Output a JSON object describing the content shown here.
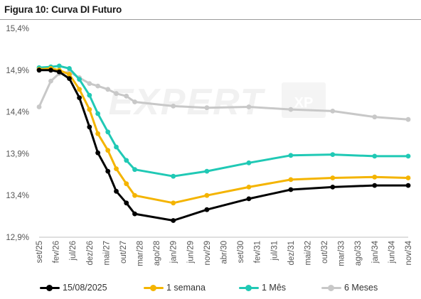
{
  "header": {
    "title": "Figura 10: Curva DI Futuro"
  },
  "watermark": {
    "text": "EXPERT",
    "badge": "XP"
  },
  "chart_data": {
    "type": "line",
    "title": "Figura 10: Curva DI Futuro",
    "xlabel": "",
    "ylabel": "",
    "x": [
      "set/25",
      "fev/26",
      "jul/26",
      "dez/26",
      "mai/27",
      "out/27",
      "mar/28",
      "ago/28",
      "jan/29",
      "jun/29",
      "nov/29",
      "abr/30",
      "set/30",
      "fev/31",
      "jul/31",
      "dez/31",
      "mai/32",
      "out/32",
      "mar/33",
      "ago/33",
      "jan/34",
      "jun/34",
      "nov/34"
    ],
    "yticks": [
      "12,9%",
      "13,4%",
      "13,9%",
      "14,4%",
      "14,9%",
      "15,4%"
    ],
    "ylim": [
      12.9,
      15.4
    ],
    "xlim": [
      0,
      22
    ],
    "grid": false,
    "legend_position": "bottom",
    "series": [
      {
        "name": "15/08/2025",
        "color": "#000000",
        "points": [
          [
            0,
            14.9
          ],
          [
            0.7,
            14.9
          ],
          [
            1.2,
            14.88
          ],
          [
            1.8,
            14.8
          ],
          [
            2.4,
            14.57
          ],
          [
            3.0,
            14.22
          ],
          [
            3.5,
            13.91
          ],
          [
            4.1,
            13.69
          ],
          [
            4.6,
            13.45
          ],
          [
            5.2,
            13.31
          ],
          [
            5.7,
            13.18
          ],
          [
            8.0,
            13.1
          ],
          [
            10.0,
            13.23
          ],
          [
            12.5,
            13.36
          ],
          [
            15.0,
            13.47
          ],
          [
            17.5,
            13.5
          ],
          [
            20.0,
            13.52
          ],
          [
            22.0,
            13.52
          ]
        ]
      },
      {
        "name": "1 semana",
        "color": "#F4B400",
        "points": [
          [
            0,
            14.91
          ],
          [
            0.7,
            14.92
          ],
          [
            1.2,
            14.9
          ],
          [
            1.8,
            14.85
          ],
          [
            2.4,
            14.67
          ],
          [
            3.0,
            14.43
          ],
          [
            3.5,
            14.14
          ],
          [
            4.1,
            13.94
          ],
          [
            4.6,
            13.72
          ],
          [
            5.2,
            13.54
          ],
          [
            5.7,
            13.4
          ],
          [
            8.0,
            13.31
          ],
          [
            10.0,
            13.4
          ],
          [
            12.5,
            13.5
          ],
          [
            15.0,
            13.59
          ],
          [
            17.5,
            13.61
          ],
          [
            20.0,
            13.62
          ],
          [
            22.0,
            13.61
          ]
        ]
      },
      {
        "name": "1 Mês",
        "color": "#20C9B5",
        "points": [
          [
            0,
            14.93
          ],
          [
            0.7,
            14.94
          ],
          [
            1.2,
            14.95
          ],
          [
            1.8,
            14.92
          ],
          [
            2.4,
            14.79
          ],
          [
            3.0,
            14.6
          ],
          [
            3.5,
            14.38
          ],
          [
            4.1,
            14.16
          ],
          [
            4.6,
            13.98
          ],
          [
            5.2,
            13.82
          ],
          [
            5.7,
            13.71
          ],
          [
            8.0,
            13.63
          ],
          [
            10.0,
            13.69
          ],
          [
            12.5,
            13.79
          ],
          [
            15.0,
            13.88
          ],
          [
            17.5,
            13.89
          ],
          [
            20.0,
            13.87
          ],
          [
            22.0,
            13.87
          ]
        ]
      },
      {
        "name": "6 Meses",
        "color": "#C8C8C8",
        "points": [
          [
            0,
            14.46
          ],
          [
            0.7,
            14.77
          ],
          [
            1.2,
            14.86
          ],
          [
            1.8,
            14.88
          ],
          [
            2.4,
            14.81
          ],
          [
            3.0,
            14.74
          ],
          [
            3.5,
            14.71
          ],
          [
            4.1,
            14.67
          ],
          [
            4.6,
            14.62
          ],
          [
            5.2,
            14.59
          ],
          [
            5.7,
            14.52
          ],
          [
            8.0,
            14.47
          ],
          [
            10.0,
            14.45
          ],
          [
            12.5,
            14.46
          ],
          [
            15.0,
            14.43
          ],
          [
            17.5,
            14.41
          ],
          [
            20.0,
            14.34
          ],
          [
            22.0,
            14.31
          ]
        ]
      }
    ]
  }
}
